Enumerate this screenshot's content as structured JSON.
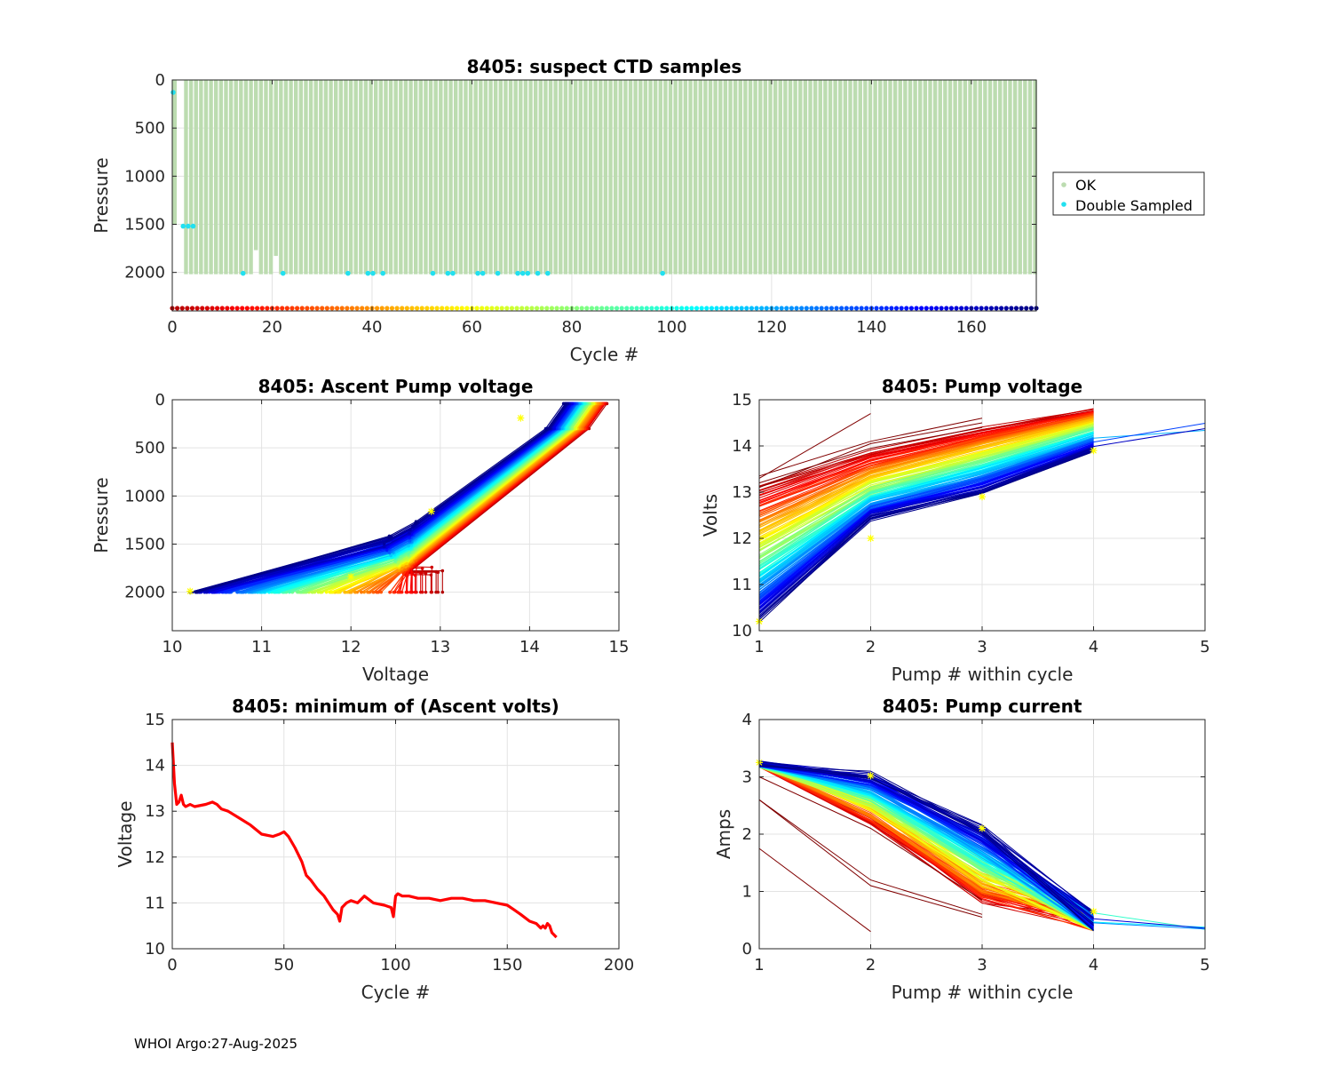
{
  "figure": {
    "footer": "WHOI Argo:27-Aug-2025"
  },
  "chart_data": [
    {
      "id": "top",
      "type": "scatter",
      "title": "8405: suspect CTD samples",
      "xlabel": "Cycle #",
      "ylabel": "Pressure",
      "xlim": [
        0,
        173
      ],
      "ylim": [
        2400,
        0
      ],
      "xticks": [
        0,
        20,
        40,
        60,
        80,
        100,
        120,
        140,
        160
      ],
      "yticks": [
        0,
        500,
        1000,
        1500,
        2000
      ],
      "legend": {
        "placement": "outside-right",
        "entries": [
          "OK",
          "Double Sampled"
        ]
      },
      "colors": {
        "ok": "#bcdcb0",
        "double": "#22e0f0"
      },
      "cycles": 173,
      "profile_max_pressure": 2000,
      "short_profiles": [
        [
          0,
          1500
        ],
        [
          17,
          1750
        ],
        [
          21,
          1810
        ]
      ],
      "missing_cycles": [],
      "double_sampled": [
        [
          0,
          120
        ],
        [
          2,
          1510
        ],
        [
          3,
          1510
        ],
        [
          4,
          1510
        ],
        [
          14,
          2000
        ],
        [
          35,
          2000
        ],
        [
          39,
          2000
        ],
        [
          40,
          2000
        ],
        [
          42,
          2000
        ],
        [
          52,
          2000
        ],
        [
          55,
          2000
        ],
        [
          56,
          2000
        ],
        [
          61,
          2000
        ],
        [
          62,
          2000
        ],
        [
          65,
          2000
        ],
        [
          69,
          2000
        ],
        [
          70,
          2000
        ],
        [
          71,
          2000
        ],
        [
          73,
          2000
        ],
        [
          75,
          2000
        ],
        [
          98,
          2000
        ],
        [
          22,
          2000
        ]
      ],
      "cycle_marker_pressure": 2390
    },
    {
      "id": "ascent",
      "type": "line",
      "title": "8405: Ascent Pump voltage",
      "xlabel": "Voltage",
      "ylabel": "Pressure",
      "xlim": [
        10,
        15
      ],
      "ylim": [
        2400,
        0
      ],
      "xticks": [
        10,
        11,
        12,
        13,
        14,
        15
      ],
      "yticks": [
        0,
        500,
        1000,
        1500,
        2000
      ],
      "profile_start_voltage_range": [
        10.2,
        13.1
      ],
      "profile_top_voltage_range": [
        14.4,
        14.85
      ],
      "star_points": [
        [
          10.2,
          1990
        ],
        [
          12.0,
          1840
        ],
        [
          12.9,
          1160
        ],
        [
          13.9,
          190
        ]
      ]
    },
    {
      "id": "pumpv",
      "type": "line",
      "title": "8405: Pump voltage",
      "xlabel": "Pump # within cycle",
      "ylabel": "Volts",
      "xlim": [
        1,
        5
      ],
      "ylim": [
        10,
        15
      ],
      "xticks": [
        1,
        2,
        3,
        4,
        5
      ],
      "yticks": [
        10,
        11,
        12,
        13,
        14,
        15
      ],
      "series_range_pump1": [
        10.2,
        13.2
      ],
      "series_range_pump4": [
        13.9,
        14.8
      ],
      "star_points": [
        [
          1,
          10.2
        ],
        [
          2,
          12.0
        ],
        [
          3,
          12.9
        ],
        [
          4,
          13.9
        ]
      ]
    },
    {
      "id": "minv",
      "type": "line",
      "title": "8405: minimum of (Ascent volts)",
      "xlabel": "Cycle #",
      "ylabel": "Voltage",
      "xlim": [
        0,
        200
      ],
      "ylim": [
        10,
        15
      ],
      "xticks": [
        0,
        50,
        100,
        150,
        200
      ],
      "yticks": [
        10,
        11,
        12,
        13,
        14,
        15
      ],
      "color": "#ff0000",
      "x": [
        0,
        1,
        2,
        3,
        4,
        5,
        6,
        8,
        10,
        15,
        18,
        20,
        22,
        25,
        30,
        35,
        40,
        45,
        48,
        50,
        52,
        55,
        58,
        60,
        62,
        65,
        68,
        70,
        72,
        74,
        75,
        76,
        78,
        80,
        83,
        86,
        90,
        95,
        98,
        99,
        100,
        101,
        103,
        106,
        110,
        115,
        120,
        125,
        130,
        135,
        140,
        145,
        150,
        153,
        156,
        160,
        163,
        165,
        166,
        167,
        168,
        169,
        170,
        171,
        172
      ],
      "y": [
        14.5,
        13.6,
        13.15,
        13.2,
        13.35,
        13.15,
        13.1,
        13.15,
        13.1,
        13.15,
        13.2,
        13.15,
        13.05,
        13.0,
        12.85,
        12.7,
        12.5,
        12.45,
        12.5,
        12.55,
        12.45,
        12.2,
        11.9,
        11.6,
        11.5,
        11.3,
        11.15,
        11.0,
        10.85,
        10.75,
        10.6,
        10.9,
        11.0,
        11.05,
        11.0,
        11.15,
        11.0,
        10.95,
        10.9,
        10.7,
        11.15,
        11.2,
        11.15,
        11.15,
        11.1,
        11.1,
        11.05,
        11.1,
        11.1,
        11.05,
        11.05,
        11.0,
        10.95,
        10.85,
        10.75,
        10.6,
        10.55,
        10.45,
        10.5,
        10.45,
        10.55,
        10.5,
        10.35,
        10.3,
        10.25
      ]
    },
    {
      "id": "pumpi",
      "type": "line",
      "title": "8405: Pump current",
      "xlabel": "Pump # within cycle",
      "ylabel": "Amps",
      "xlim": [
        1,
        5
      ],
      "ylim": [
        0,
        4
      ],
      "xticks": [
        1,
        2,
        3,
        4,
        5
      ],
      "yticks": [
        0,
        1,
        2,
        3,
        4
      ],
      "series_range_pump1": [
        3.05,
        3.28
      ],
      "series_range_pump4": [
        0.3,
        0.75
      ],
      "early_series": [
        [
          2.6,
          1.1,
          0.55
        ],
        [
          1.75,
          0.3
        ],
        [
          2.6,
          1.2,
          0.6
        ],
        [
          3.0,
          2.1,
          0.85
        ]
      ],
      "star_points": [
        [
          1,
          3.25
        ],
        [
          2,
          3.02
        ],
        [
          3,
          2.1
        ],
        [
          4,
          0.65
        ]
      ]
    }
  ]
}
